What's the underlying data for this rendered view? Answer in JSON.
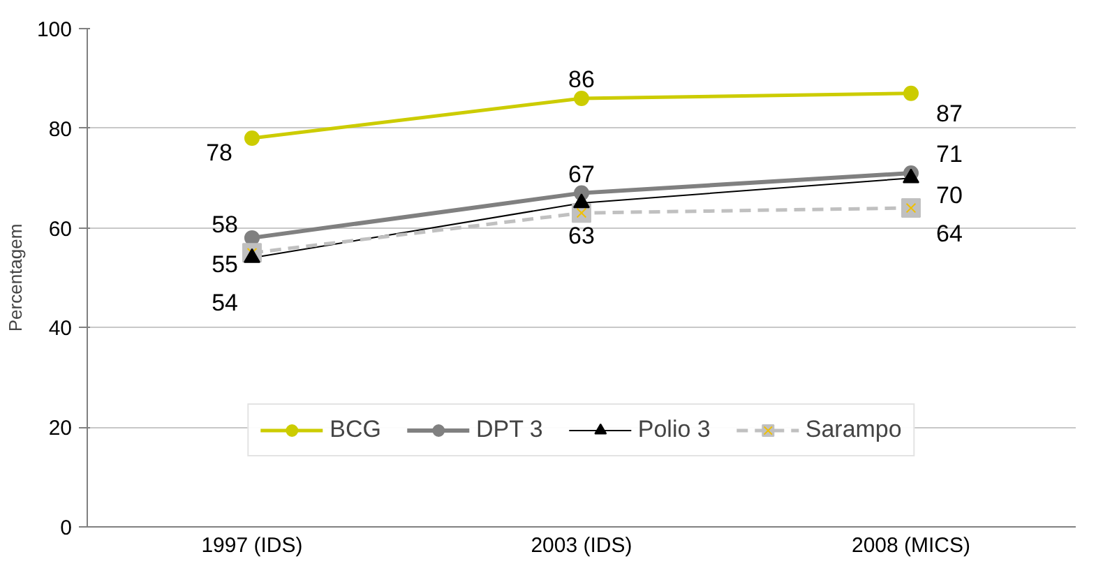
{
  "chart_data": {
    "type": "line",
    "categories": [
      "1997 (IDS)",
      "2003 (IDS)",
      "2008 (MICS)"
    ],
    "ylabel": "Percentagem",
    "ylim": [
      0,
      100
    ],
    "yticks": [
      0,
      20,
      40,
      60,
      80,
      100
    ],
    "grid": "y",
    "legend": "bottom",
    "series": [
      {
        "name": "BCG",
        "color": "#cccc00",
        "values": [
          78,
          86,
          87
        ],
        "value_labels": [
          "78",
          "86",
          "87"
        ],
        "marker": "circle",
        "line_style": "solid"
      },
      {
        "name": "DPT 3",
        "color": "#808080",
        "values": [
          58,
          67,
          71
        ],
        "value_labels": [
          "58",
          "67",
          "71"
        ],
        "marker": "circle",
        "line_style": "solid"
      },
      {
        "name": "Polio 3",
        "color": "#000000",
        "values": [
          54,
          65,
          70
        ],
        "value_labels": [
          "54",
          null,
          "70"
        ],
        "marker": "triangle",
        "line_style": "solid"
      },
      {
        "name": "Sarampo",
        "color": "#c0c0c0",
        "values": [
          55,
          63,
          64
        ],
        "value_labels": [
          "55",
          "63",
          "64"
        ],
        "marker": "square",
        "line_style": "dashed"
      }
    ]
  }
}
